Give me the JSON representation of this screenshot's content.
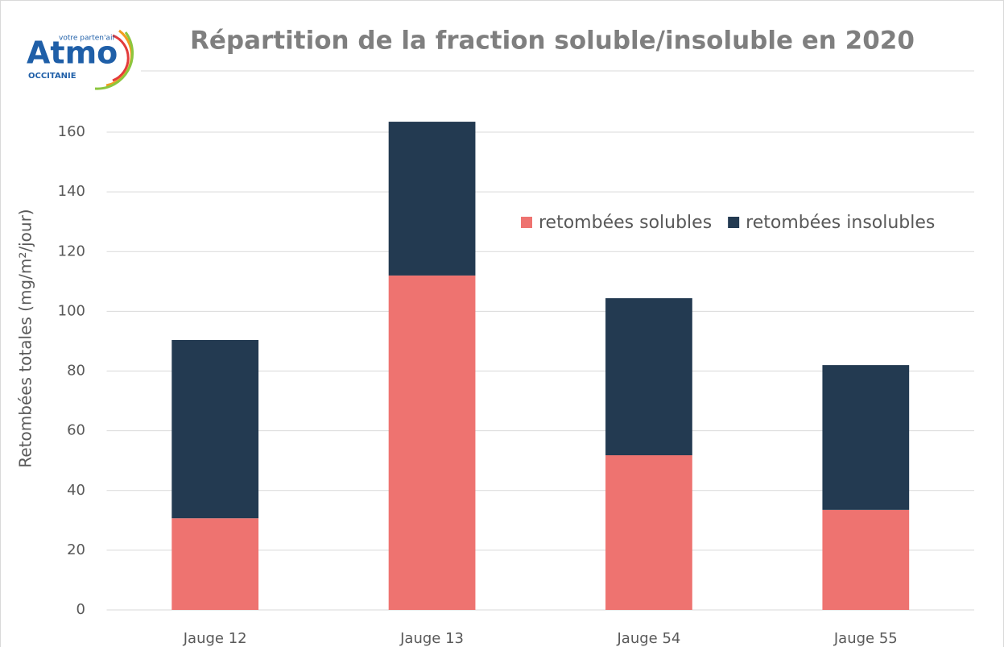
{
  "logo": {
    "name": "Atmo",
    "tagline": "votre parten'air",
    "region": "OCCITANIE"
  },
  "chart_data": {
    "type": "bar",
    "stacked": true,
    "title": "Répartition de la fraction soluble/insoluble en 2020",
    "y_label": "Retombées totales  (mg/m²/jour)",
    "categories": [
      "Jauge 12",
      "Jauge 13",
      "Jauge 54",
      "Jauge 55"
    ],
    "series": [
      {
        "name": "retombées solubles",
        "color": "#ee7370",
        "values": [
          30.7,
          112.0,
          51.8,
          33.5
        ]
      },
      {
        "name": "retombées insolubles",
        "color": "#233a51",
        "values": [
          59.7,
          51.5,
          52.6,
          48.5
        ]
      }
    ],
    "ylim": [
      0,
      170
    ],
    "yticks": [
      0,
      20,
      40,
      60,
      80,
      100,
      120,
      140,
      160
    ],
    "grid": true
  }
}
